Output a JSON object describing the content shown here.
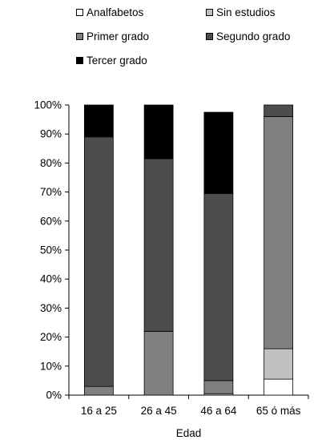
{
  "chart_data": {
    "type": "bar",
    "stacked": true,
    "percent": true,
    "title": "",
    "xlabel": "Edad",
    "ylabel": "",
    "ylim": [
      0,
      100
    ],
    "yticks": [
      "0%",
      "10%",
      "20%",
      "30%",
      "40%",
      "50%",
      "60%",
      "70%",
      "80%",
      "90%",
      "100%"
    ],
    "grid": false,
    "legend_position": "top",
    "categories": [
      "16 a 25",
      "26 a 45",
      "46 a 64",
      "65 ó más"
    ],
    "series": [
      {
        "name": "Analfabetos",
        "color": "#ffffff",
        "values": [
          0,
          0,
          0,
          5.5
        ]
      },
      {
        "name": "Sin estudios",
        "color": "#c0c0c0",
        "values": [
          0,
          0,
          0.5,
          10.5
        ]
      },
      {
        "name": "Primer grado",
        "color": "#808080",
        "values": [
          3,
          22,
          4.5,
          80
        ]
      },
      {
        "name": "Segundo grado",
        "color": "#4d4d4d",
        "values": [
          86,
          59.5,
          64.5,
          4
        ]
      },
      {
        "name": "Tercer grado",
        "color": "#000000",
        "values": [
          11,
          18.5,
          28,
          0
        ]
      }
    ]
  }
}
